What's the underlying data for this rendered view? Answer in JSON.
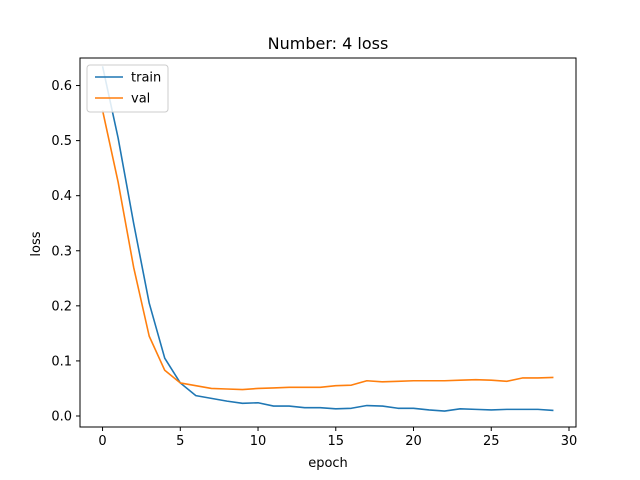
{
  "chart_data": {
    "type": "line",
    "title": "Number: 4 loss",
    "xlabel": "epoch",
    "ylabel": "loss",
    "xlim": [
      -1.45,
      30.45
    ],
    "ylim": [
      -0.02,
      0.65
    ],
    "xticks": [
      0,
      5,
      10,
      15,
      20,
      25,
      30
    ],
    "yticks": [
      0.0,
      0.1,
      0.2,
      0.3,
      0.4,
      0.5,
      0.6
    ],
    "grid": false,
    "legend_position": "upper-left",
    "x": [
      0,
      1,
      2,
      3,
      4,
      5,
      6,
      7,
      8,
      9,
      10,
      11,
      12,
      13,
      14,
      15,
      16,
      17,
      18,
      19,
      20,
      21,
      22,
      23,
      24,
      25,
      26,
      27,
      28,
      29
    ],
    "series": [
      {
        "name": "train",
        "color": "#1f77b4",
        "values": [
          0.635,
          0.505,
          0.35,
          0.205,
          0.105,
          0.06,
          0.037,
          0.032,
          0.027,
          0.023,
          0.024,
          0.018,
          0.018,
          0.015,
          0.015,
          0.013,
          0.014,
          0.019,
          0.018,
          0.014,
          0.014,
          0.011,
          0.009,
          0.013,
          0.012,
          0.011,
          0.012,
          0.012,
          0.012,
          0.01
        ]
      },
      {
        "name": "val",
        "color": "#ff7f0e",
        "values": [
          0.555,
          0.425,
          0.27,
          0.145,
          0.083,
          0.06,
          0.055,
          0.05,
          0.049,
          0.048,
          0.05,
          0.051,
          0.052,
          0.052,
          0.052,
          0.055,
          0.056,
          0.064,
          0.062,
          0.063,
          0.064,
          0.064,
          0.064,
          0.065,
          0.066,
          0.065,
          0.063,
          0.069,
          0.069,
          0.07
        ]
      }
    ]
  }
}
